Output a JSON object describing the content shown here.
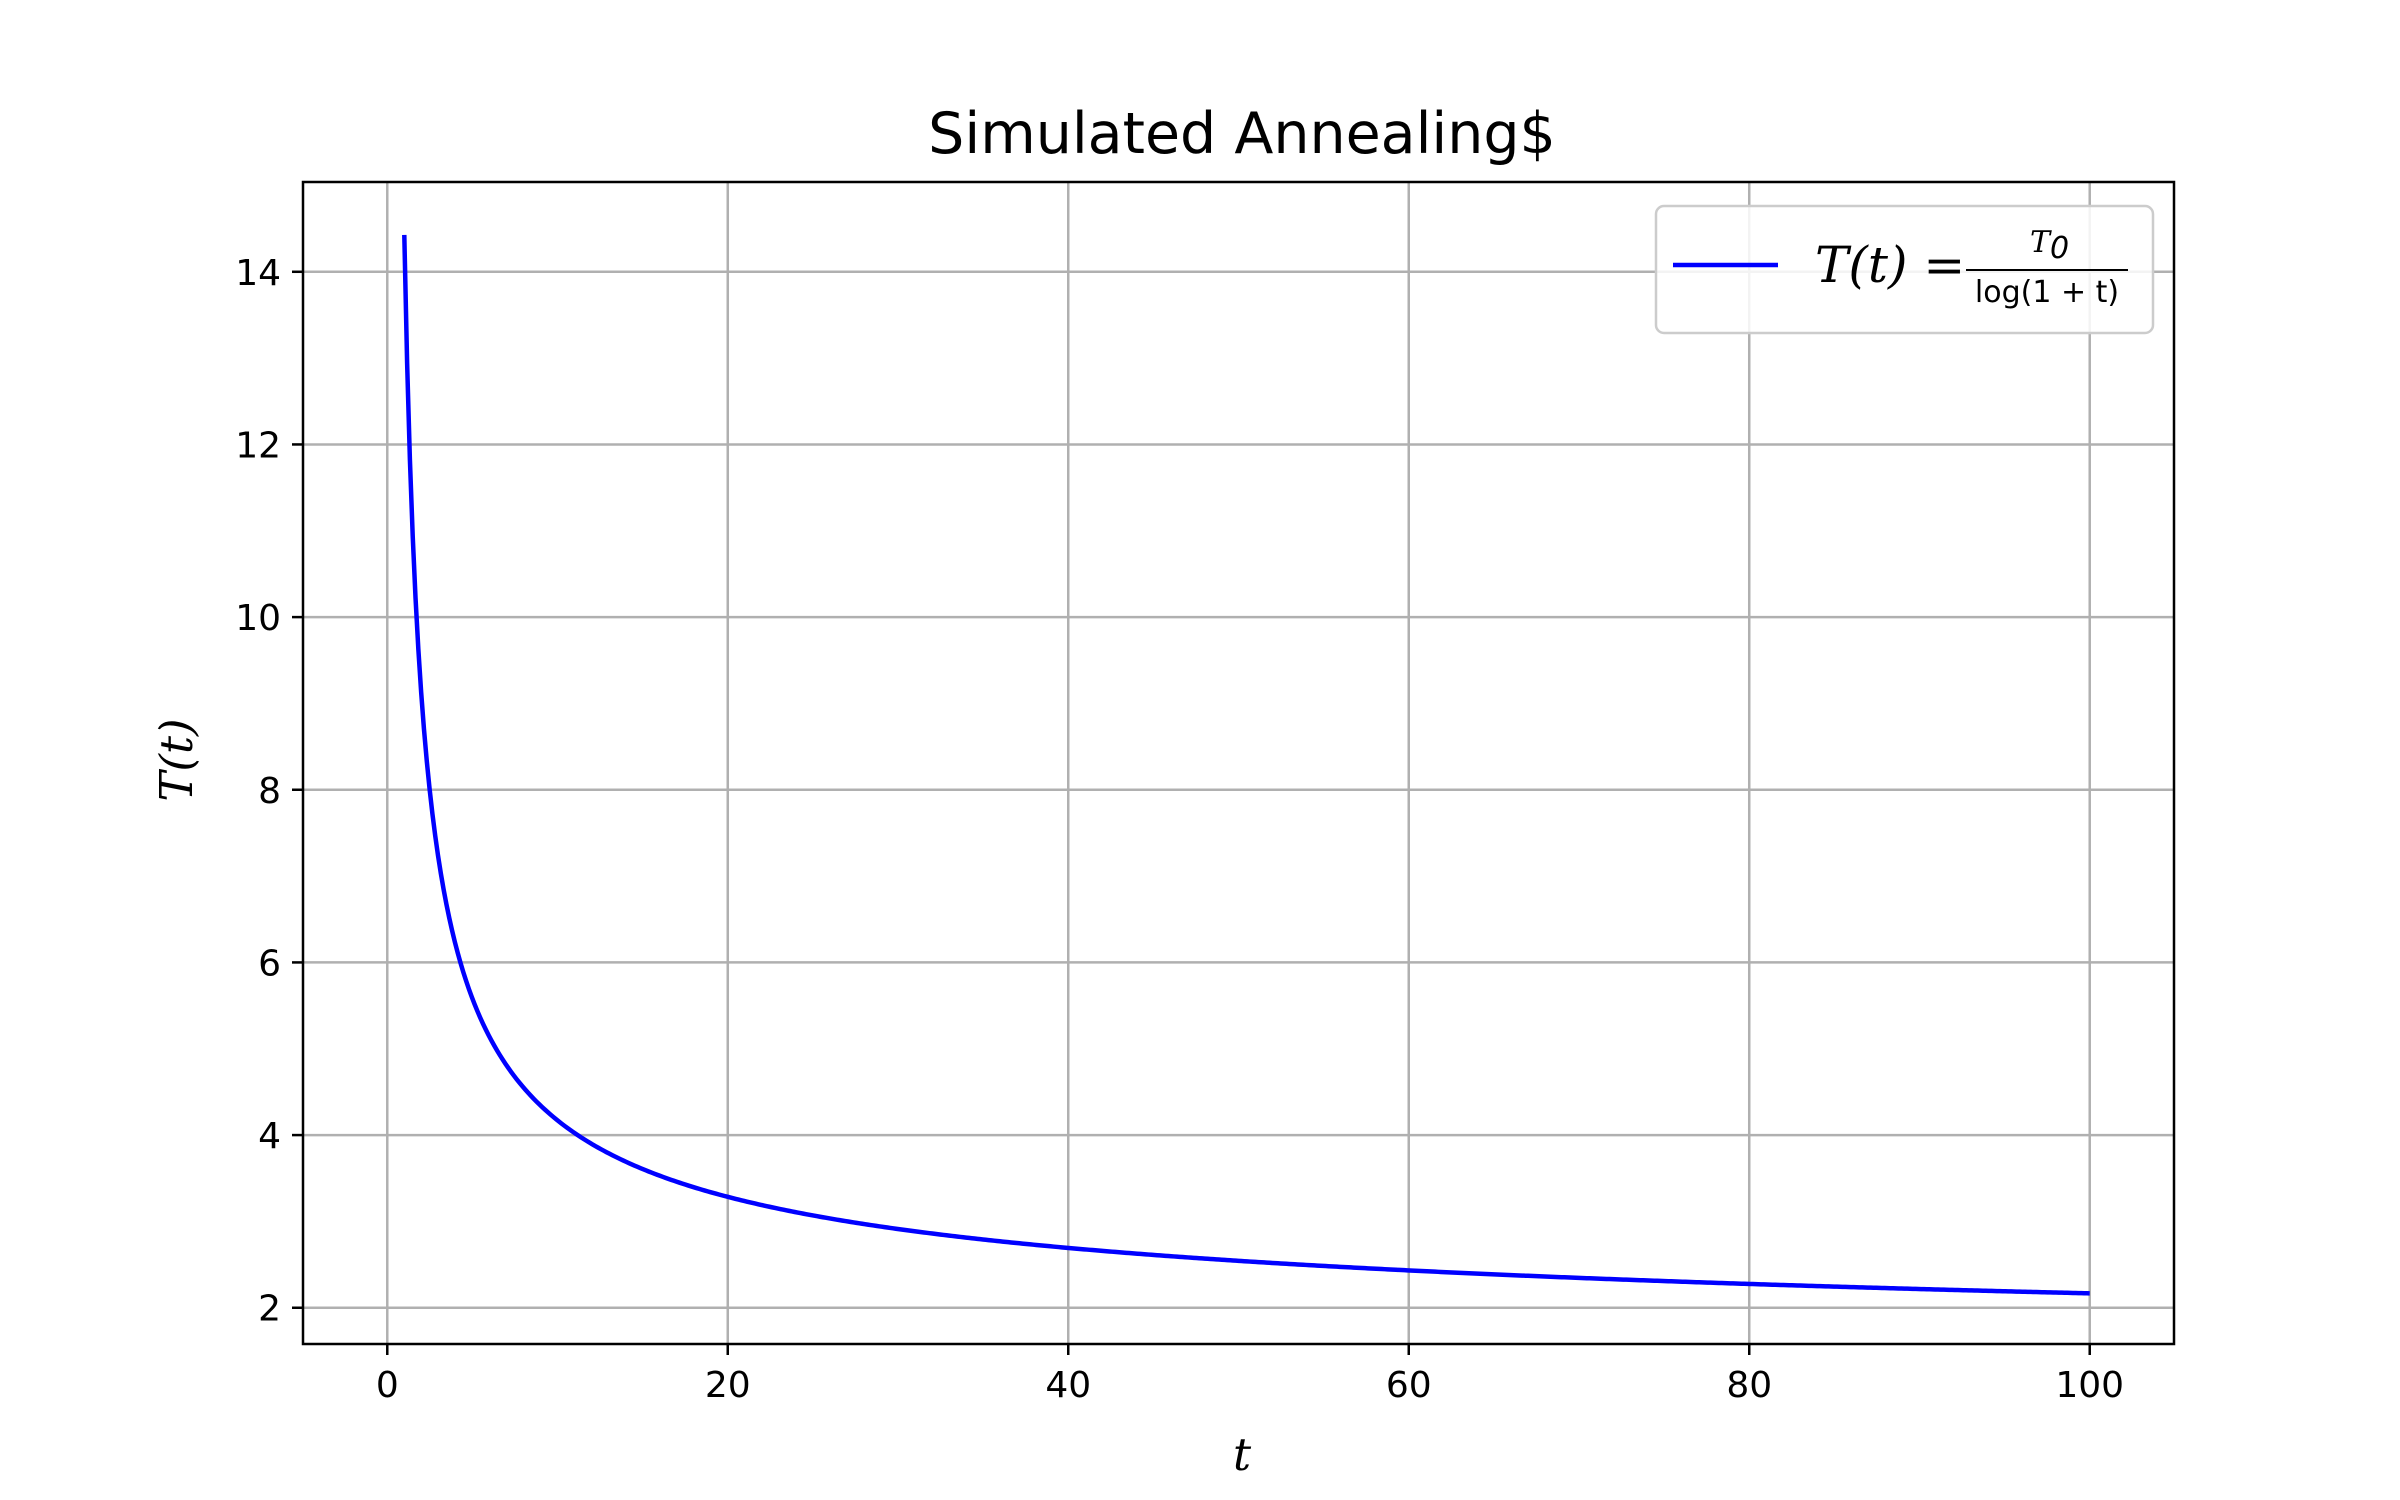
{
  "chart_data": {
    "type": "line",
    "title": "Simulated Annealing$",
    "xlabel": "t",
    "ylabel": "T(t)",
    "xlim": [
      -4.95,
      104.95
    ],
    "ylim": [
      1.58,
      15.04
    ],
    "x_ticks": [
      0,
      20,
      40,
      60,
      80,
      100
    ],
    "y_ticks": [
      2,
      4,
      6,
      8,
      10,
      12,
      14
    ],
    "grid": true,
    "legend_position": "top-right",
    "series": [
      {
        "name": "T(t) = T0 / log(1 + t)",
        "color": "#0000ff",
        "formula": "T(t) = 10 / ln(1 + t)",
        "t_range": [
          1,
          100
        ],
        "x": [
          1,
          1.5,
          2,
          3,
          4,
          5,
          6,
          8,
          10,
          12,
          15,
          20,
          25,
          30,
          40,
          50,
          60,
          70,
          80,
          90,
          100
        ],
        "y": [
          14.43,
          10.91,
          9.1,
          7.21,
          6.21,
          5.58,
          5.14,
          4.55,
          4.17,
          3.9,
          3.61,
          3.28,
          3.07,
          2.91,
          2.69,
          2.54,
          2.43,
          2.35,
          2.28,
          2.22,
          2.17
        ]
      }
    ]
  },
  "legend": {
    "lhs": "T(t) =",
    "numerator_main": "T",
    "numerator_sub": "0",
    "denominator": "log(1 + t)"
  }
}
